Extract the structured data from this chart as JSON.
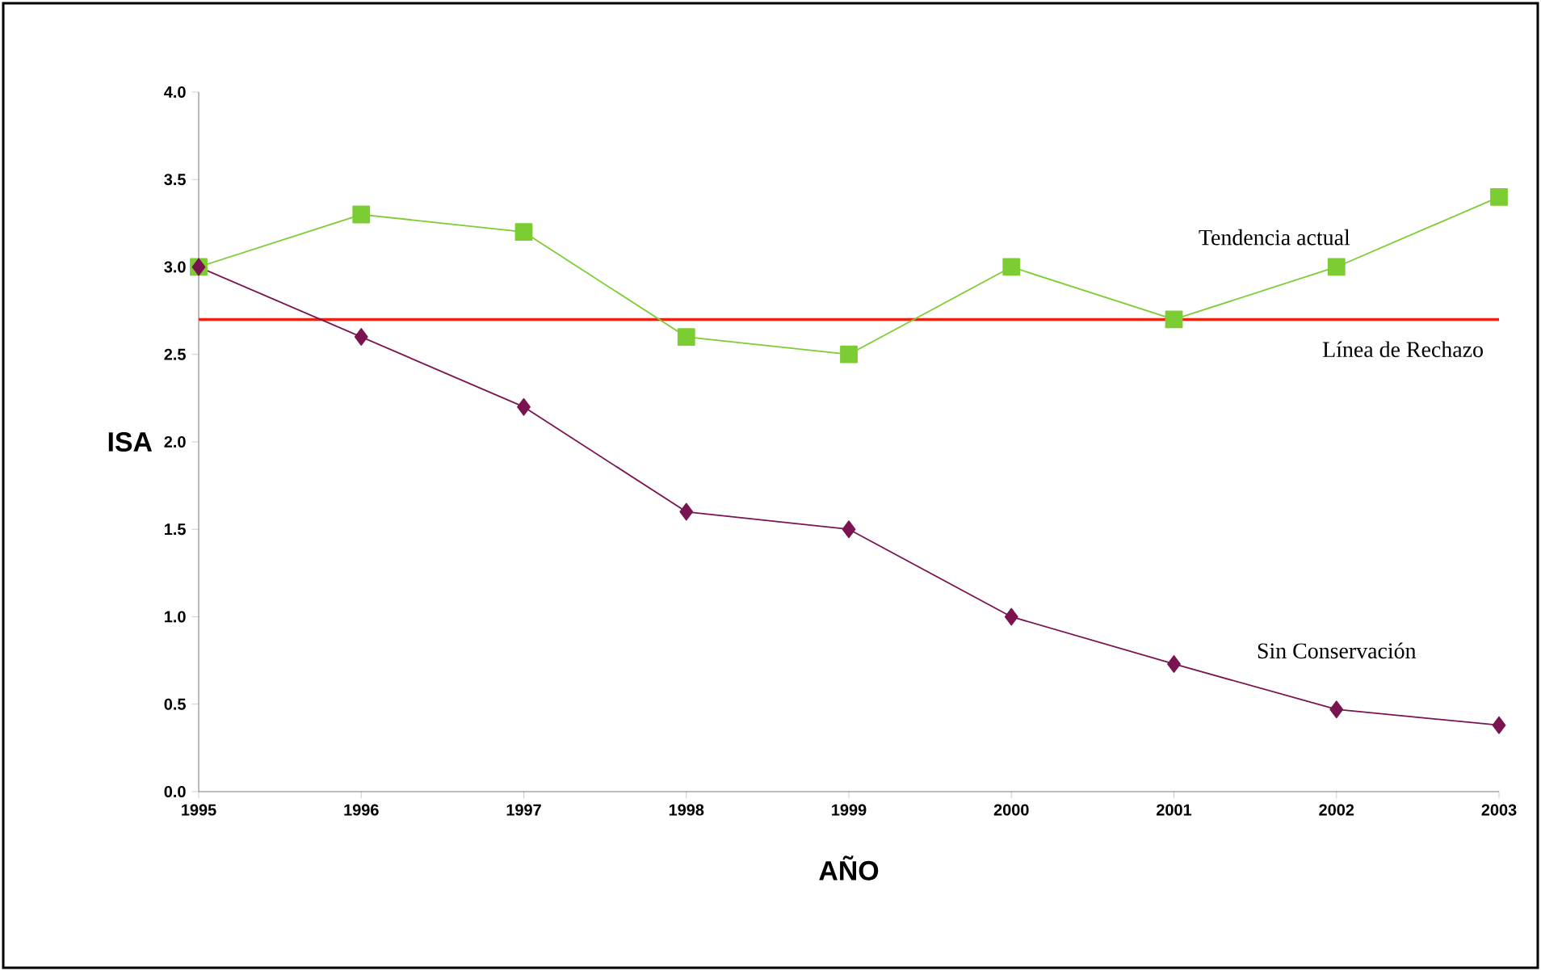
{
  "chart_data": {
    "type": "line",
    "xlabel": "AÑO",
    "ylabel": "ISA",
    "categories": [
      "1995",
      "1996",
      "1997",
      "1998",
      "1999",
      "2000",
      "2001",
      "2002",
      "2003"
    ],
    "series": [
      {
        "name": "Tendencia actual",
        "color": "#7ccc33",
        "marker": "square",
        "values": [
          3.0,
          3.3,
          3.2,
          2.6,
          2.5,
          3.0,
          2.7,
          3.0,
          3.4
        ]
      },
      {
        "name": "Sin Conservación",
        "color": "#7a1450",
        "marker": "diamond",
        "values": [
          3.0,
          2.6,
          2.2,
          1.6,
          1.5,
          1.0,
          0.73,
          0.47,
          0.38
        ]
      }
    ],
    "ref_lines": [
      {
        "axis": "y",
        "value": 2.7,
        "label": "Línea de Rechazo",
        "color": "#ee2211"
      }
    ],
    "ylim": [
      0,
      4
    ],
    "yticks": [
      {
        "value": 0,
        "label": "0.0"
      },
      {
        "value": 0.5,
        "label": "0.5"
      },
      {
        "value": 1,
        "label": "1.0"
      },
      {
        "value": 1.5,
        "label": "1.5"
      },
      {
        "value": 2,
        "label": "2.0"
      },
      {
        "value": 2.5,
        "label": "2.5"
      },
      {
        "value": 3,
        "label": "3.0"
      },
      {
        "value": 3.5,
        "label": "3.5"
      },
      {
        "value": 4,
        "label": "4.0"
      }
    ],
    "grid": false
  }
}
